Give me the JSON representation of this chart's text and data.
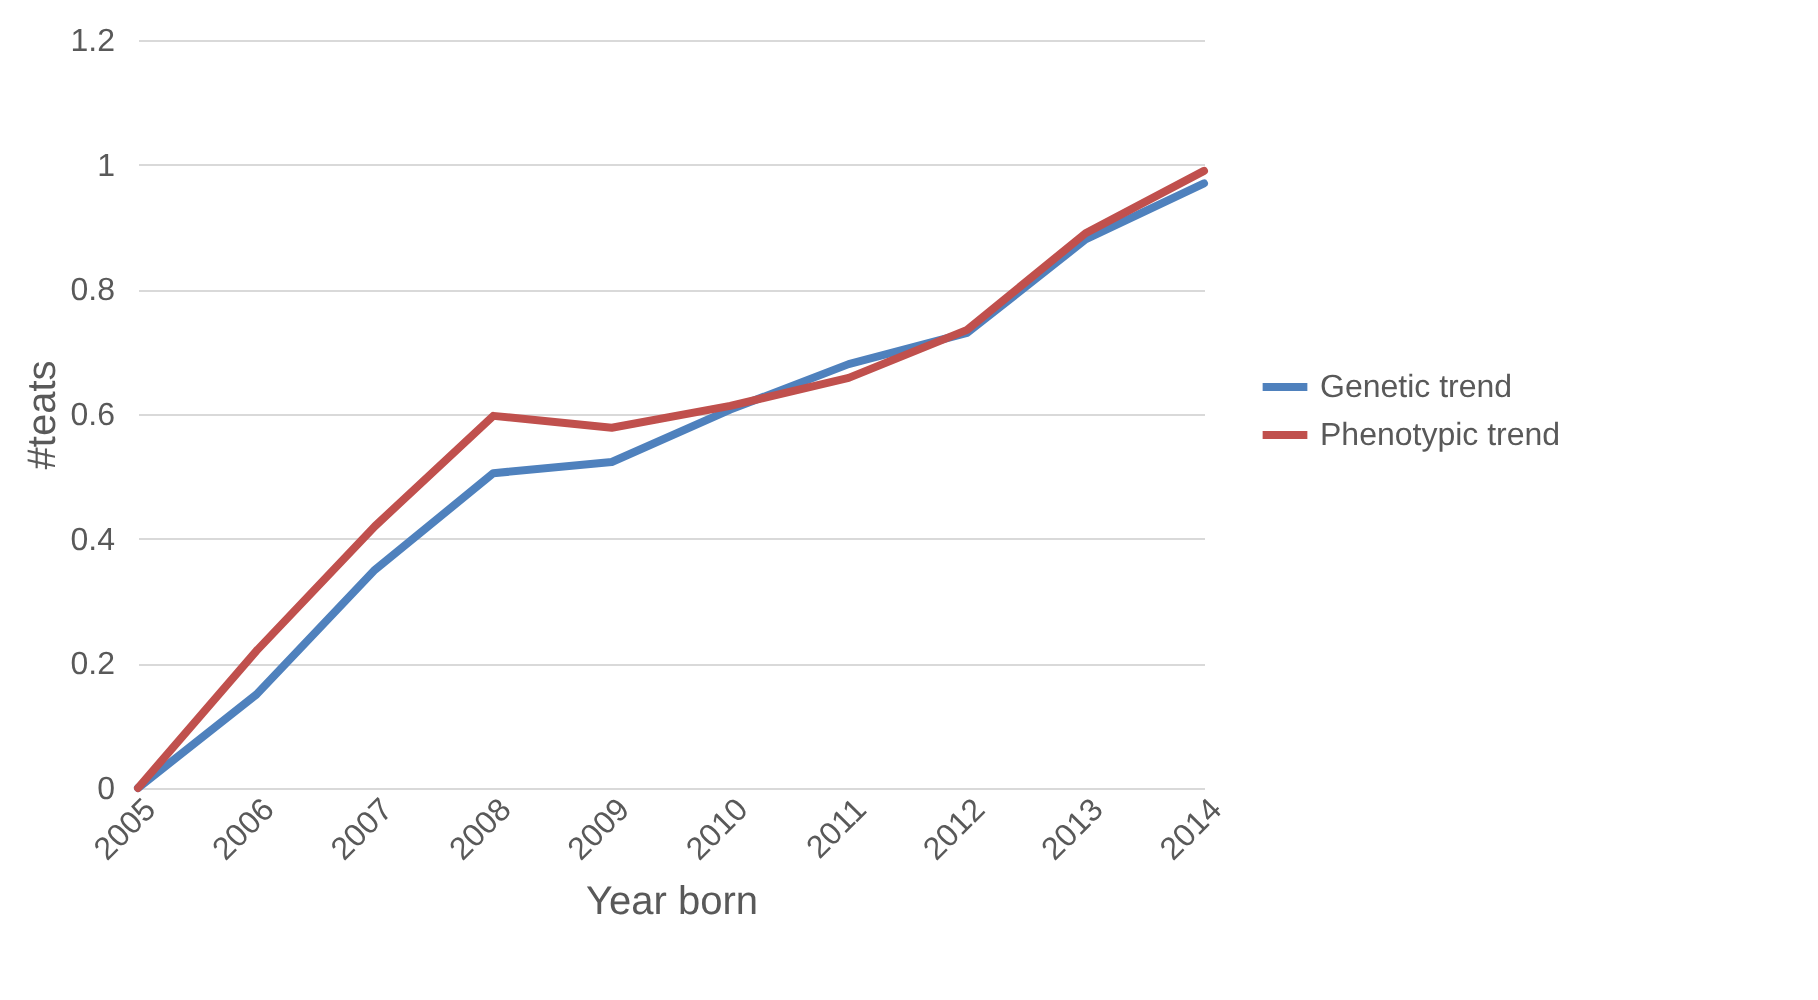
{
  "chart_data": {
    "type": "line",
    "xlabel": "Year born",
    "ylabel": "#teats",
    "categories": [
      "2005",
      "2006",
      "2007",
      "2008",
      "2009",
      "2010",
      "2011",
      "2012",
      "2013",
      "2014"
    ],
    "series": [
      {
        "name": "Genetic trend",
        "color": "#4f81bd",
        "values": [
          0,
          0.15,
          0.35,
          0.505,
          0.523,
          0.607,
          0.68,
          0.73,
          0.88,
          0.97
        ]
      },
      {
        "name": "Phenotypic trend",
        "color": "#c0504d",
        "values": [
          0,
          0.22,
          0.42,
          0.597,
          0.578,
          0.613,
          0.658,
          0.735,
          0.89,
          0.99
        ]
      }
    ],
    "ylim": [
      0,
      1.2
    ],
    "yticks": [
      0,
      0.2,
      0.4,
      0.6,
      0.8,
      1,
      1.2
    ],
    "grid": "y",
    "legend": "right",
    "marker": "none",
    "line_style": "solid"
  }
}
